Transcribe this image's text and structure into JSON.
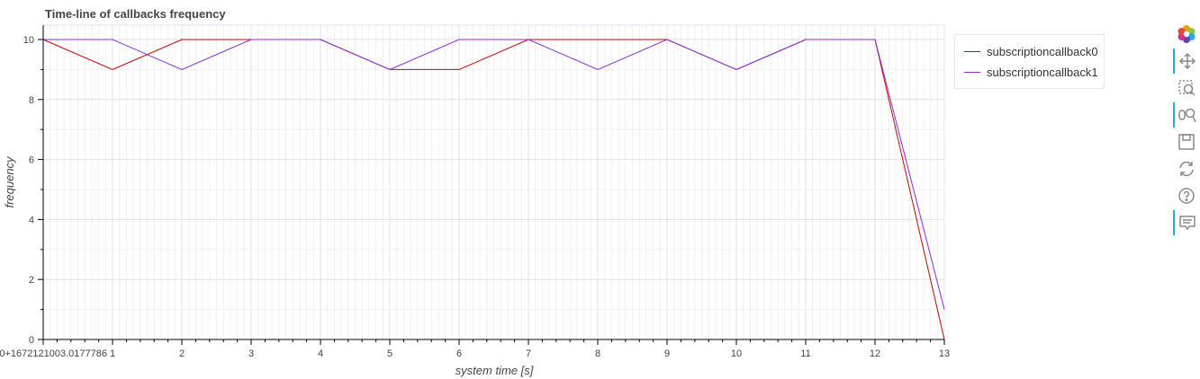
{
  "chart_data": {
    "type": "line",
    "title": "Time-line of callbacks frequency",
    "xlabel": "system time [s]",
    "ylabel": "frequency",
    "xlim": [
      0,
      13
    ],
    "ylim": [
      0,
      10.5
    ],
    "x_ticks": [
      {
        "value": 0,
        "label": "0+1672121003.0177786"
      },
      {
        "value": 1,
        "label": "1"
      },
      {
        "value": 2,
        "label": "2"
      },
      {
        "value": 3,
        "label": "3"
      },
      {
        "value": 4,
        "label": "4"
      },
      {
        "value": 5,
        "label": "5"
      },
      {
        "value": 6,
        "label": "6"
      },
      {
        "value": 7,
        "label": "7"
      },
      {
        "value": 8,
        "label": "8"
      },
      {
        "value": 9,
        "label": "9"
      },
      {
        "value": 10,
        "label": "10"
      },
      {
        "value": 11,
        "label": "11"
      },
      {
        "value": 12,
        "label": "12"
      },
      {
        "value": 13,
        "label": "13"
      }
    ],
    "y_ticks": [
      0,
      2,
      4,
      6,
      8,
      10
    ],
    "grid": true,
    "legend_position": "top-right",
    "series": [
      {
        "name": "subscriptioncallback0",
        "color": "#cc0000",
        "x": [
          0,
          1,
          2,
          3,
          4,
          5,
          6,
          7,
          8,
          9,
          10,
          11,
          12,
          13
        ],
        "y": [
          10,
          9,
          10,
          10,
          10,
          9,
          9,
          10,
          10,
          10,
          9,
          10,
          10,
          0
        ]
      },
      {
        "name": "subscriptioncallback1",
        "color": "#8a2be2",
        "x": [
          0,
          1,
          2,
          3,
          4,
          5,
          6,
          7,
          8,
          9,
          10,
          11,
          12,
          13
        ],
        "y": [
          10,
          10,
          9,
          10,
          10,
          9,
          10,
          10,
          9,
          10,
          9,
          10,
          10,
          1
        ]
      }
    ]
  },
  "toolbar": {
    "tools": [
      {
        "icon": "bokeh-logo-icon",
        "active": false
      },
      {
        "icon": "pan-icon",
        "active": true
      },
      {
        "icon": "box-zoom-icon",
        "active": false
      },
      {
        "icon": "wheel-zoom-icon",
        "active": true
      },
      {
        "icon": "save-icon",
        "active": false
      },
      {
        "icon": "reset-icon",
        "active": false
      },
      {
        "icon": "help-icon",
        "active": false
      },
      {
        "icon": "hover-icon",
        "active": true
      }
    ]
  }
}
